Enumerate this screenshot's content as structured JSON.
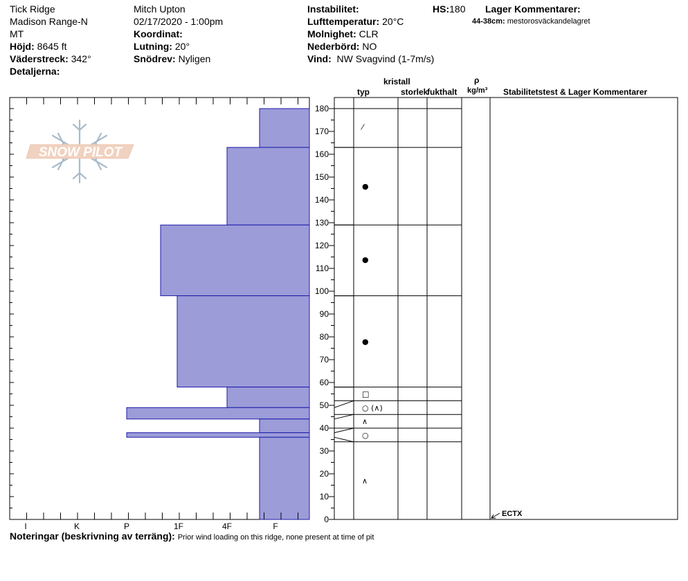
{
  "header": {
    "location": "Tick Ridge",
    "range": "Madison Range-N",
    "state": "MT",
    "elevation_label": "Höjd:",
    "elevation_value": "8645 ft",
    "aspect_label": "Väderstreck:",
    "aspect_value": "342°",
    "details_label": "Detaljerna:",
    "observer": "Mitch Upton",
    "datetime": "02/17/2020 - 1:00pm",
    "coordinate_label": "Koordinat:",
    "slope_label": "Lutning:",
    "slope_value": "20°",
    "drift_label": "Snödrev:",
    "drift_value": "Nyligen",
    "instability_label": "Instabilitet:",
    "air_temp_label": "Lufttemperatur:",
    "air_temp_value": "20°C",
    "cloud_label": "Molnighet:",
    "cloud_value": "CLR",
    "precip_label": "Nederbörd:",
    "precip_value": "NO",
    "wind_label": "Vind:",
    "wind_value": "NW Svagvind (1-7m/s)",
    "hs_label": "HS:",
    "hs_value": "180",
    "layer_comments_label": "Lager Kommentarer:",
    "layer_comment_range": "44-38cm:",
    "layer_comment_text": "mestorosväckandelagret"
  },
  "columns": {
    "type": "typ",
    "crystal": "kristall",
    "size": "storlek",
    "moisture": "fukthalt",
    "rho": "ρ",
    "density_unit": "kg/m³",
    "stability": "Stabilitetstest & Lager Kommentarer"
  },
  "footer": {
    "notes_label": "Noteringar (beskrivning av terräng):",
    "notes_text": "Prior wind loading on this ridge, none present at time of pit"
  },
  "logo_text": "SNOW PILOT",
  "stability_test": {
    "label": "ECTX",
    "depth": 0
  },
  "colors": {
    "bar_fill": "#9c9cd9",
    "bar_stroke": "#1c1ca8"
  },
  "chart_data": {
    "type": "bar",
    "orientation": "horizontal",
    "title": "",
    "ylabel": "",
    "xlabel": "",
    "ylim": [
      0,
      180
    ],
    "y_ticks": [
      0,
      10,
      20,
      30,
      40,
      50,
      60,
      70,
      80,
      90,
      100,
      110,
      120,
      130,
      140,
      150,
      160,
      170,
      180
    ],
    "hardness_scale": [
      "I",
      "K",
      "P",
      "1F",
      "4F",
      "F"
    ],
    "layers": [
      {
        "top": 180,
        "bottom": 163,
        "hardness": "F"
      },
      {
        "top": 163,
        "bottom": 129,
        "hardness": "4F"
      },
      {
        "top": 129,
        "bottom": 98,
        "hardness": "1F+"
      },
      {
        "top": 98,
        "bottom": 58,
        "hardness": "1F-"
      },
      {
        "top": 58,
        "bottom": 49,
        "hardness": "4F"
      },
      {
        "top": 49,
        "bottom": 44,
        "hardness": "P"
      },
      {
        "top": 44,
        "bottom": 38,
        "hardness": "F"
      },
      {
        "top": 38,
        "bottom": 36,
        "hardness": "P"
      },
      {
        "top": 36,
        "bottom": 0,
        "hardness": "F"
      }
    ],
    "layer_boundaries": [
      180,
      163,
      129,
      98,
      58,
      52,
      46,
      40,
      34
    ],
    "grain_symbols": [
      {
        "depth": 172,
        "symbol": "⁄"
      },
      {
        "depth": 146,
        "symbol": "●"
      },
      {
        "depth": 114,
        "symbol": "●"
      },
      {
        "depth": 78,
        "symbol": "●"
      },
      {
        "depth": 55,
        "symbol": "□"
      },
      {
        "depth": 49,
        "symbol": "○ (∧)"
      },
      {
        "depth": 43,
        "symbol": "∧"
      },
      {
        "depth": 37,
        "symbol": "○"
      },
      {
        "depth": 17,
        "symbol": "∧"
      }
    ],
    "grid": false,
    "legend": "none"
  }
}
